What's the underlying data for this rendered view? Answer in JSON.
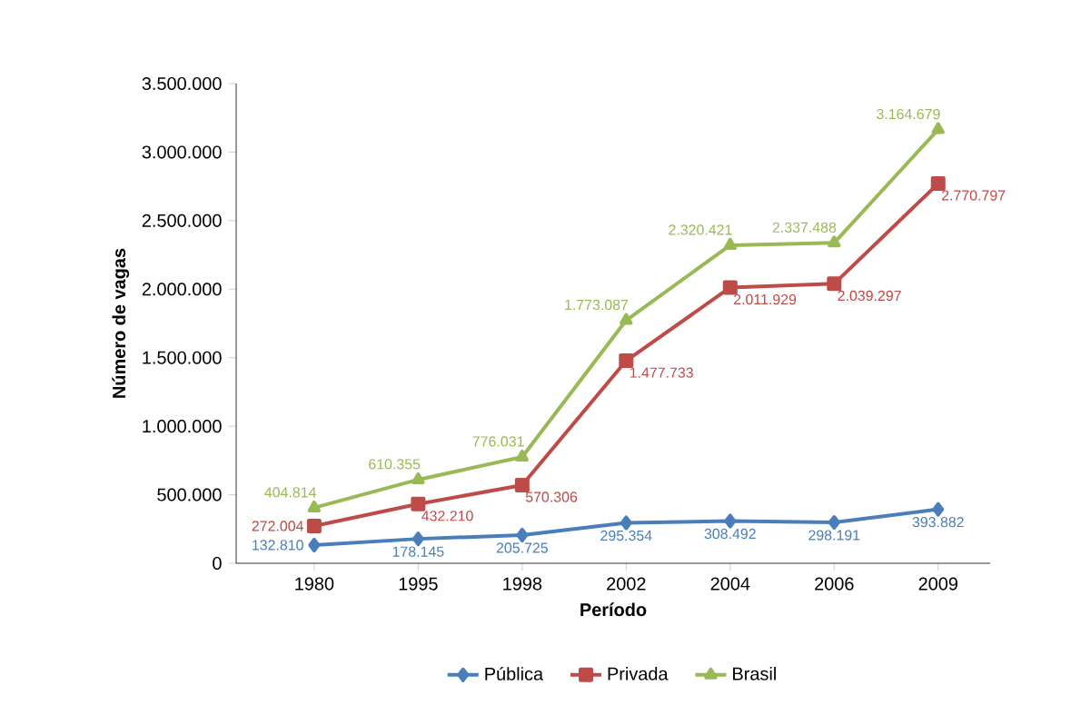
{
  "chart_data": {
    "type": "line",
    "xlabel": "Período",
    "ylabel": "Número de vagas",
    "categories": [
      "1980",
      "1995",
      "1998",
      "2002",
      "2004",
      "2006",
      "2009"
    ],
    "series": [
      {
        "name": "Pública",
        "color": "#4a7ebb",
        "marker": "diamond",
        "values": [
          132810,
          178145,
          205725,
          295354,
          308492,
          298191,
          393882
        ],
        "value_labels": [
          "132.810",
          "178.145",
          "205.725",
          "295.354",
          "308.492",
          "298.191",
          "393.882"
        ]
      },
      {
        "name": "Privada",
        "color": "#be4b48",
        "marker": "square",
        "values": [
          272004,
          432210,
          570306,
          1477733,
          2011929,
          2039297,
          2770797
        ],
        "value_labels": [
          "272.004",
          "432.210",
          "570.306",
          "1.477.733",
          "2.011.929",
          "2.039.297",
          "2.770.797"
        ]
      },
      {
        "name": "Brasil",
        "color": "#98b954",
        "marker": "triangle",
        "values": [
          404814,
          610355,
          776031,
          1773087,
          2320421,
          2337488,
          3164679
        ],
        "value_labels": [
          "404.814",
          "610.355",
          "776.031",
          "1.773.087",
          "2.320.421",
          "2.337.488",
          "3.164.679"
        ]
      }
    ],
    "ylim": [
      0,
      3500000
    ],
    "yticks": [
      0,
      {
        "value": 500000,
        "label": "500.000"
      },
      {
        "value": 1000000,
        "label": "1.000.000"
      },
      {
        "value": 1500000,
        "label": "1.500.000"
      },
      {
        "value": 2000000,
        "label": "2.000.000"
      },
      {
        "value": 2500000,
        "label": "2.500.000"
      },
      {
        "value": 3000000,
        "label": "3.000.000"
      },
      {
        "value": 3500000,
        "label": "3.500.000"
      }
    ],
    "grid": false,
    "legend": "bottom",
    "line_style": "solid"
  }
}
